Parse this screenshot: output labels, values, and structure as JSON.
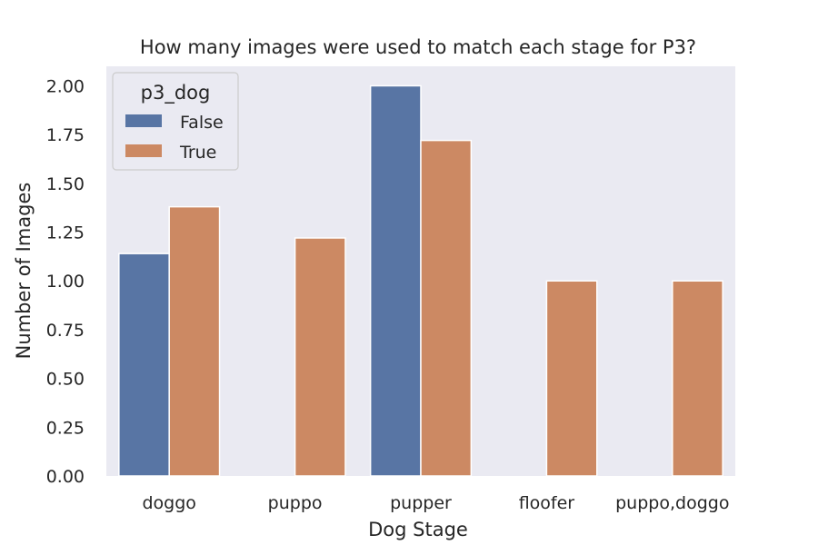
{
  "chart_data": {
    "type": "bar",
    "title": "How many images were used to match each stage for P3?",
    "xlabel": "Dog Stage",
    "ylabel": "Number of Images",
    "categories": [
      "doggo",
      "puppo",
      "pupper",
      "floofer",
      "puppo,doggo"
    ],
    "series": [
      {
        "name": "False",
        "color": "#5875a4",
        "values": [
          1.14,
          null,
          2.0,
          null,
          null
        ]
      },
      {
        "name": "True",
        "color": "#cc8963",
        "values": [
          1.38,
          1.22,
          1.72,
          1.0,
          1.0
        ]
      }
    ],
    "ylim": [
      0,
      2.1
    ],
    "yticks": [
      "0.00",
      "0.25",
      "0.50",
      "0.75",
      "1.00",
      "1.25",
      "1.50",
      "1.75",
      "2.00"
    ],
    "legend": {
      "title": "p3_dog",
      "placement": "top-left"
    },
    "background": "#eaeaf2",
    "grid": false
  }
}
